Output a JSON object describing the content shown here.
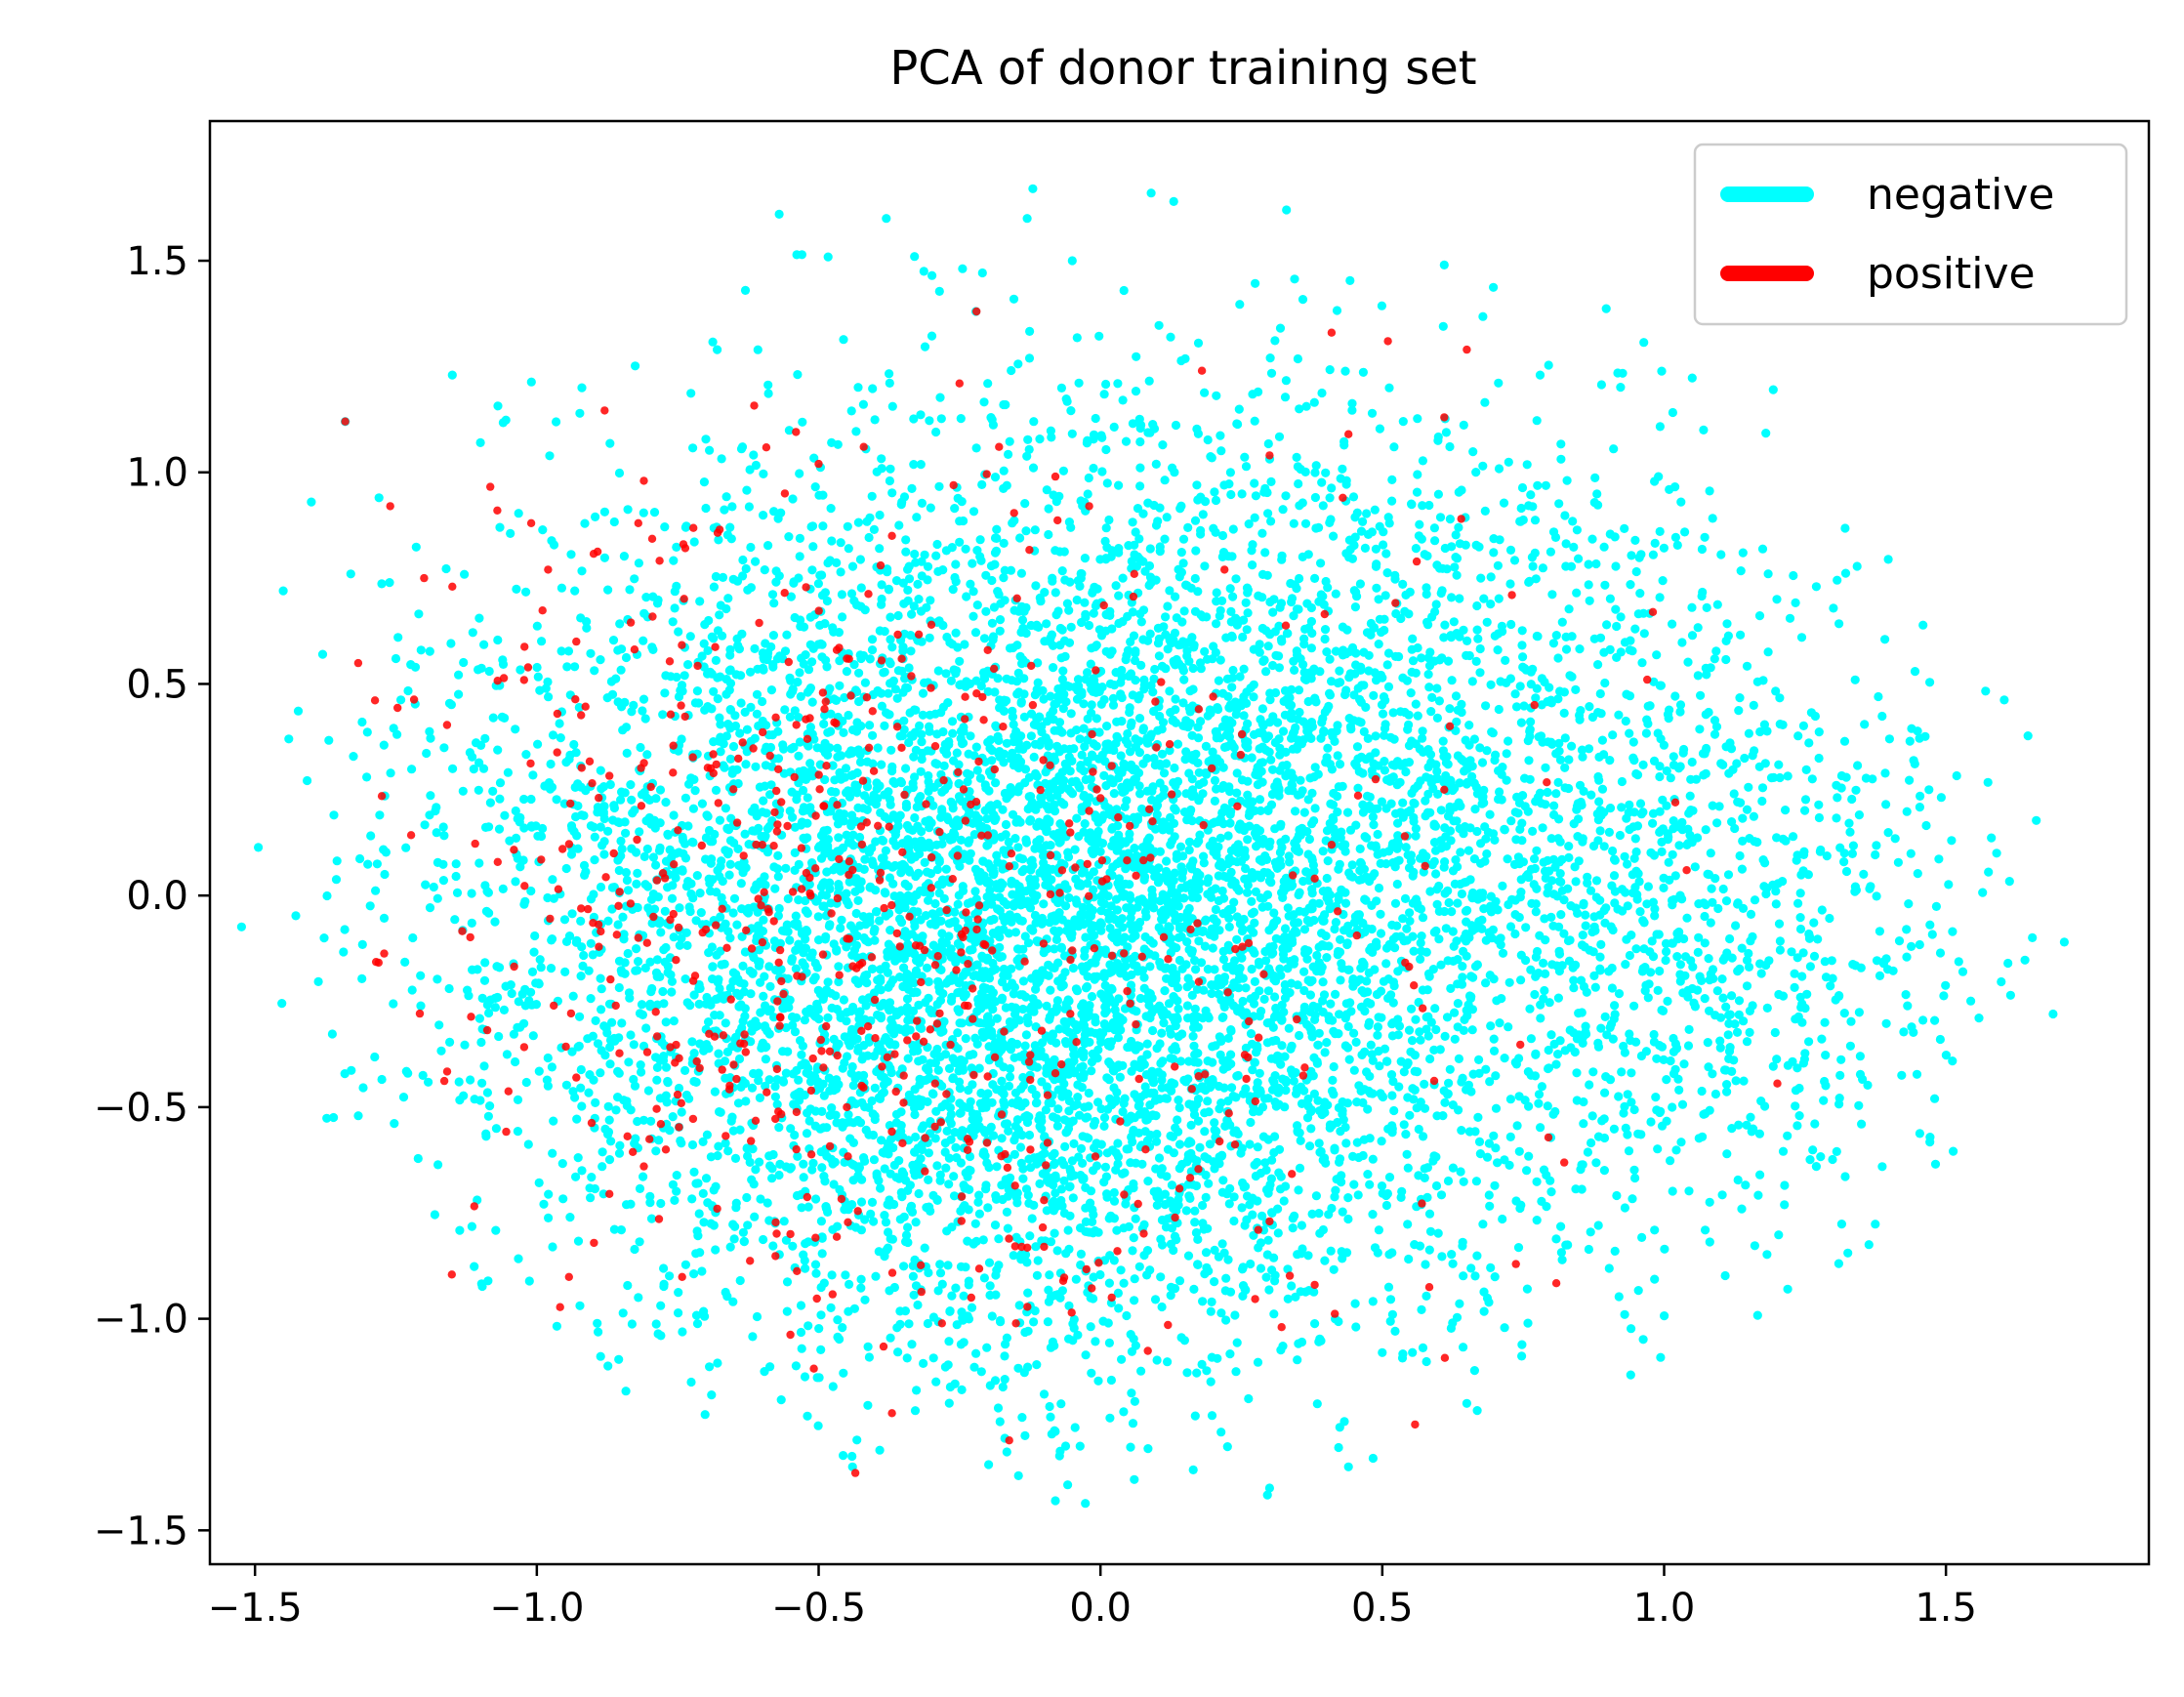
{
  "chart_data": {
    "type": "scatter",
    "title": "PCA of donor training set",
    "xlabel": "",
    "ylabel": "",
    "xlim": [
      -1.58,
      1.86
    ],
    "ylim": [
      -1.58,
      1.83
    ],
    "xticks": [
      -1.5,
      -1.0,
      -0.5,
      0.0,
      0.5,
      1.0,
      1.5
    ],
    "yticks": [
      -1.5,
      -1.0,
      -0.5,
      0.0,
      0.5,
      1.0,
      1.5
    ],
    "xtick_labels": [
      "−1.5",
      "−1.0",
      "−0.5",
      "0.0",
      "0.5",
      "1.0",
      "1.5"
    ],
    "ytick_labels": [
      "−1.5",
      "−1.0",
      "−0.5",
      "0.0",
      "0.5",
      "1.0",
      "1.5"
    ],
    "grid": false,
    "legend": "top-right",
    "series": [
      {
        "name": "negative",
        "color": "#00ffff",
        "distribution": {
          "count": 9000,
          "clusters": [
            {
              "cx": -0.45,
              "cy": 0.0,
              "sx": 0.4,
              "sy": 0.52,
              "weight": 0.35
            },
            {
              "cx": 0.05,
              "cy": -0.35,
              "sx": 0.38,
              "sy": 0.4,
              "weight": 0.3
            },
            {
              "cx": 0.3,
              "cy": 0.4,
              "sx": 0.45,
              "sy": 0.4,
              "weight": 0.25
            },
            {
              "cx": 1.0,
              "cy": -0.1,
              "sx": 0.3,
              "sy": 0.38,
              "weight": 0.1
            }
          ]
        },
        "points": [
          [
            -1.45,
            0.72
          ],
          [
            -1.44,
            0.37
          ],
          [
            -1.4,
            0.93
          ],
          [
            -1.38,
            0.57
          ],
          [
            -1.36,
            0.19
          ],
          [
            -1.34,
            1.12
          ],
          [
            -1.33,
            0.76
          ],
          [
            -1.31,
            0.41
          ],
          [
            -1.28,
            0.94
          ],
          [
            -1.25,
            0.56
          ],
          [
            -1.27,
            0.05
          ],
          [
            -1.22,
            -0.1
          ],
          [
            -1.18,
            0.2
          ],
          [
            -1.15,
            1.23
          ],
          [
            -1.1,
            1.07
          ],
          [
            -1.02,
            -0.26
          ],
          [
            -0.98,
            -0.45
          ],
          [
            -0.92,
            1.2
          ],
          [
            -0.92,
            -0.65
          ],
          [
            -0.85,
            -0.79
          ],
          [
            -0.82,
            -0.95
          ],
          [
            -0.78,
            -1.04
          ],
          [
            -0.69,
            -1.18
          ],
          [
            -0.68,
            1.29
          ],
          [
            -0.63,
            1.43
          ],
          [
            -0.57,
            1.61
          ],
          [
            -0.52,
            -1.23
          ],
          [
            -0.44,
            -1.35
          ],
          [
            -0.38,
            1.6
          ],
          [
            -0.33,
            1.51
          ],
          [
            -0.2,
            1.21
          ],
          [
            -0.13,
            1.6
          ],
          [
            -0.12,
            1.67
          ],
          [
            -0.05,
            1.5
          ],
          [
            -0.08,
            -1.43
          ],
          [
            0.06,
            -1.38
          ],
          [
            0.09,
            1.66
          ],
          [
            0.13,
            1.64
          ],
          [
            0.3,
            -1.4
          ],
          [
            0.33,
            1.62
          ],
          [
            0.44,
            -1.35
          ],
          [
            0.5,
            -1.08
          ],
          [
            0.61,
            1.49
          ],
          [
            0.65,
            -1.2
          ],
          [
            0.78,
            1.23
          ],
          [
            0.8,
            -0.7
          ],
          [
            0.93,
            -0.99
          ],
          [
            0.99,
            0.99
          ],
          [
            1.03,
            0.93
          ],
          [
            1.05,
            -0.22
          ],
          [
            1.07,
            1.1
          ],
          [
            1.12,
            -0.55
          ],
          [
            1.14,
            0.81
          ],
          [
            1.17,
            -0.66
          ],
          [
            1.2,
            0.7
          ],
          [
            1.24,
            -0.52
          ],
          [
            1.27,
            0.73
          ],
          [
            1.27,
            -0.64
          ],
          [
            1.32,
            0.1
          ],
          [
            1.35,
            -0.54
          ],
          [
            1.38,
            0.47
          ],
          [
            1.4,
            0.37
          ],
          [
            1.43,
            -0.08
          ],
          [
            1.47,
            0.25
          ],
          [
            1.48,
            -0.48
          ],
          [
            1.49,
            -0.34
          ],
          [
            1.51,
            0.13
          ],
          [
            1.53,
            -0.18
          ],
          [
            1.59,
            0.1
          ],
          [
            1.61,
            -0.16
          ],
          [
            1.69,
            -0.28
          ],
          [
            1.71,
            -0.11
          ]
        ]
      },
      {
        "name": "positive",
        "color": "#ff0000",
        "distribution": {
          "count": 560,
          "clusters": [
            {
              "cx": -0.55,
              "cy": -0.05,
              "sx": 0.32,
              "sy": 0.48,
              "weight": 0.75
            },
            {
              "cx": 0.1,
              "cy": -0.3,
              "sx": 0.35,
              "sy": 0.45,
              "weight": 0.25
            }
          ]
        },
        "points": [
          [
            -1.34,
            1.12
          ],
          [
            -1.26,
            0.92
          ],
          [
            -1.2,
            0.75
          ],
          [
            -1.15,
            0.73
          ],
          [
            -1.07,
            0.91
          ],
          [
            -1.01,
            0.88
          ],
          [
            -0.98,
            0.77
          ],
          [
            -0.93,
            0.6
          ],
          [
            -0.82,
            0.88
          ],
          [
            -0.81,
            0.98
          ],
          [
            -0.74,
            0.83
          ],
          [
            -0.56,
            0.95
          ],
          [
            -0.5,
            1.02
          ],
          [
            -0.42,
            1.06
          ],
          [
            -0.37,
            0.85
          ],
          [
            -0.22,
            1.38
          ],
          [
            -0.25,
            1.21
          ],
          [
            -0.18,
            1.06
          ],
          [
            -0.08,
            0.99
          ],
          [
            -0.02,
            0.92
          ],
          [
            0.06,
            0.76
          ],
          [
            0.18,
            1.24
          ],
          [
            0.22,
            0.77
          ],
          [
            0.3,
            1.04
          ],
          [
            0.41,
            1.33
          ],
          [
            0.44,
            1.09
          ],
          [
            0.43,
            0.94
          ],
          [
            0.51,
            1.31
          ],
          [
            0.61,
            1.13
          ],
          [
            0.65,
            1.29
          ],
          [
            0.64,
            0.89
          ],
          [
            0.73,
            0.71
          ],
          [
            0.77,
            0.45
          ],
          [
            0.97,
            0.51
          ],
          [
            0.98,
            0.67
          ],
          [
            1.02,
            0.22
          ],
          [
            1.04,
            0.06
          ],
          [
            0.62,
            0.4
          ],
          [
            0.61,
            0.25
          ],
          [
            0.54,
            0.14
          ],
          [
            0.41,
            0.12
          ],
          [
            0.38,
            0.04
          ],
          [
            0.38,
            -0.92
          ],
          [
            0.3,
            -0.77
          ],
          [
            0.28,
            -0.79
          ],
          [
            0.08,
            -0.6
          ],
          [
            0.03,
            -0.84
          ],
          [
            0.02,
            -0.95
          ],
          [
            -0.1,
            -0.72
          ],
          [
            -0.1,
            -0.83
          ],
          [
            -0.08,
            -0.42
          ],
          [
            -0.05,
            -0.13
          ],
          [
            -0.45,
            -0.5
          ],
          [
            -0.55,
            -0.8
          ],
          [
            -0.62,
            -0.58
          ],
          [
            -0.68,
            -0.74
          ],
          [
            -0.78,
            -0.54
          ],
          [
            -0.81,
            -0.64
          ],
          [
            -0.86,
            -0.26
          ],
          [
            -0.93,
            -0.43
          ],
          [
            -0.97,
            -0.26
          ],
          [
            -0.82,
            -0.1
          ],
          [
            -0.7,
            -0.08
          ],
          [
            -0.6,
            0.12
          ],
          [
            -0.52,
            0.37
          ],
          [
            -0.45,
            0.56
          ],
          [
            -0.39,
            0.78
          ],
          [
            -0.3,
            0.64
          ],
          [
            -0.2,
            0.58
          ],
          [
            -0.12,
            0.45
          ],
          [
            0.2,
            0.47
          ],
          [
            0.0,
            0.23
          ],
          [
            -0.02,
            0.2
          ],
          [
            0.12,
            -0.15
          ],
          [
            0.16,
            -0.08
          ]
        ]
      }
    ]
  }
}
